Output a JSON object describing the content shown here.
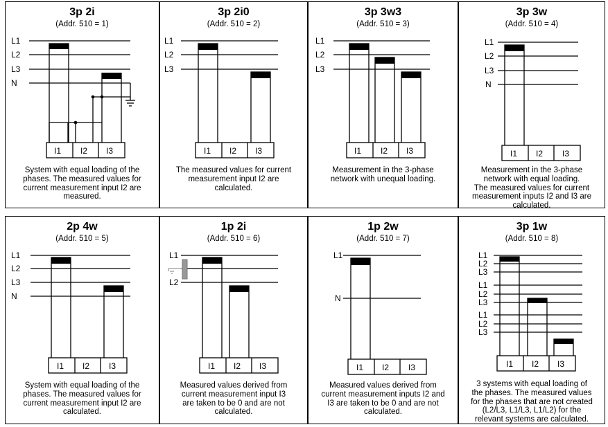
{
  "panels": [
    {
      "title": "3p 2i",
      "addr": "(Addr. 510 = 1)",
      "lines": [
        "L1",
        "L2",
        "L3",
        "N"
      ],
      "inputs": [
        "I1",
        "I2",
        "I3"
      ],
      "desc": [
        "System with equal loading of the",
        "phases. The measured values for",
        "current measurement input I2 are",
        "measured."
      ]
    },
    {
      "title": "3p 2i0",
      "addr": "(Addr. 510 = 2)",
      "lines": [
        "L1",
        "L2",
        "L3"
      ],
      "inputs": [
        "I1",
        "I2",
        "I3"
      ],
      "desc": [
        "The measured values for current",
        "measurement input I2 are",
        "calculated."
      ]
    },
    {
      "title": "3p 3w3",
      "addr": "(Addr. 510 = 3)",
      "lines": [
        "L1",
        "L2",
        "L3"
      ],
      "inputs": [
        "I1",
        "I2",
        "I3"
      ],
      "desc": [
        "Measurement in the 3-phase",
        "network with unequal loading."
      ]
    },
    {
      "title": "3p 3w",
      "addr": "(Addr. 510 = 4)",
      "lines": [
        "L1",
        "L2",
        "L3",
        "N"
      ],
      "inputs": [
        "I1",
        "I2",
        "I3"
      ],
      "desc": [
        "Measurement in the 3-phase",
        "network with equal loading.",
        "The measured values for current",
        "measurement inputs I2 and I3 are",
        "calculated."
      ]
    },
    {
      "title": "2p 4w",
      "addr": "(Addr. 510 = 5)",
      "lines": [
        "L1",
        "L2",
        "L3",
        "N"
      ],
      "inputs": [
        "I1",
        "I2",
        "I3"
      ],
      "desc": [
        "System with equal loading of the",
        "phases. The measured values for",
        "current measurement input I2 are",
        "calculated."
      ]
    },
    {
      "title": "1p 2i",
      "addr": "(Addr. 510 = 6)",
      "lines": [
        "L1",
        "L2"
      ],
      "inputs": [
        "I1",
        "I2",
        "I3"
      ],
      "desc": [
        "Measured values derived from",
        "current measurement input I3",
        "are taken to be 0 and are not",
        "calculated."
      ]
    },
    {
      "title": "1p 2w",
      "addr": "(Addr. 510 = 7)",
      "lines": [
        "L1",
        "N"
      ],
      "inputs": [
        "I1",
        "I2",
        "I3"
      ],
      "desc": [
        "Measured values derived from",
        "current measurement inputs I2 and",
        "I3 are taken to be 0 and are not",
        "calculated."
      ]
    },
    {
      "title": "3p 1w",
      "addr": "(Addr. 510 = 8)",
      "lines": [
        "L1",
        "L2",
        "L3",
        "L1",
        "L2",
        "L3",
        "L1",
        "L2",
        "L3"
      ],
      "inputs": [
        "I1",
        "I2",
        "I3"
      ],
      "desc": [
        "3 systems with equal loading of",
        "the phases. The measured values",
        "for the phases that are not created",
        "(L2/L3, L1/L3, L1/L2) for the",
        "relevant systems are calculated."
      ]
    }
  ]
}
